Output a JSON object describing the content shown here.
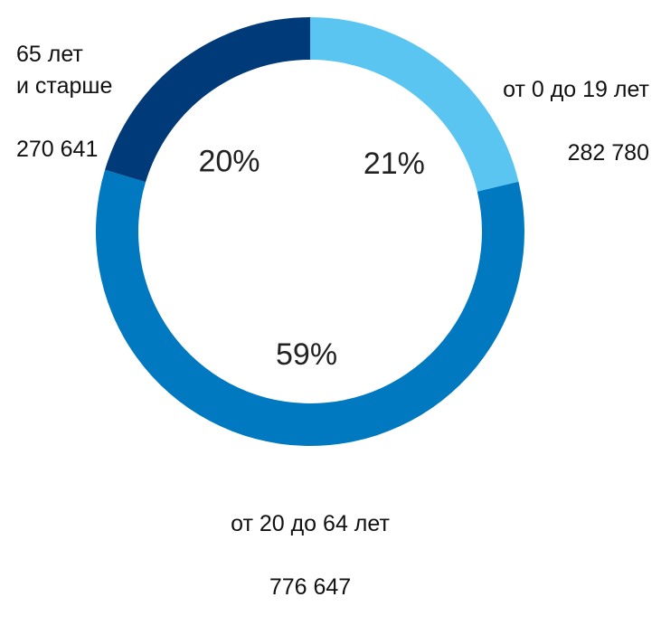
{
  "chart_data": {
    "type": "donut",
    "categories": [
      "от 0 до 19 лет",
      "от 20 до 64 лет",
      "65 лет\nи старше"
    ],
    "values": [
      282780,
      776647,
      270641
    ],
    "value_labels": [
      "282 780",
      "776 647",
      "270 641"
    ],
    "shares": [
      21,
      59,
      20
    ],
    "share_labels": [
      "21%",
      "59%",
      "20%"
    ],
    "colors": [
      "#5bc5f2",
      "#0079c1",
      "#003a78"
    ]
  }
}
